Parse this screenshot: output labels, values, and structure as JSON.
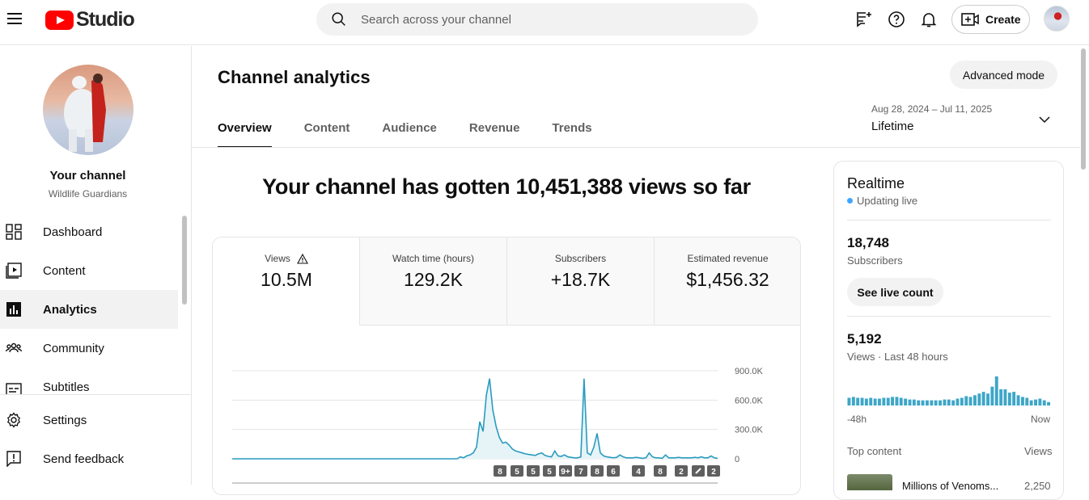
{
  "header": {
    "logo_text": "Studio",
    "search_placeholder": "Search across your channel",
    "create_label": "Create"
  },
  "sidebar": {
    "channel_title": "Your channel",
    "channel_name": "Wildlife Guardians",
    "items": [
      {
        "label": "Dashboard",
        "icon": "dashboard-icon"
      },
      {
        "label": "Content",
        "icon": "content-icon"
      },
      {
        "label": "Analytics",
        "icon": "analytics-icon",
        "active": true
      },
      {
        "label": "Community",
        "icon": "community-icon"
      },
      {
        "label": "Subtitles",
        "icon": "subtitles-icon"
      }
    ],
    "footer_items": [
      {
        "label": "Settings",
        "icon": "gear-icon"
      },
      {
        "label": "Send feedback",
        "icon": "feedback-icon"
      }
    ]
  },
  "main": {
    "title": "Channel analytics",
    "advanced_mode_label": "Advanced mode",
    "tabs": [
      {
        "label": "Overview",
        "active": true
      },
      {
        "label": "Content"
      },
      {
        "label": "Audience"
      },
      {
        "label": "Revenue"
      },
      {
        "label": "Trends"
      }
    ],
    "date_range": {
      "dates": "Aug 28, 2024 – Jul 11, 2025",
      "label": "Lifetime"
    },
    "headline": "Your channel has gotten 10,451,388 views so far",
    "metrics": [
      {
        "label": "Views",
        "value": "10.5M",
        "active": true,
        "warning": true
      },
      {
        "label": "Watch time (hours)",
        "value": "129.2K"
      },
      {
        "label": "Subscribers",
        "value": "+18.7K"
      },
      {
        "label": "Estimated revenue",
        "value": "$1,456.32"
      }
    ]
  },
  "chart_data": {
    "type": "area",
    "title": "",
    "xlabel": "",
    "ylabel": "",
    "yticks": [
      "900.0K",
      "600.0K",
      "300.0K",
      "0"
    ],
    "ylim": [
      0,
      900000
    ],
    "grid": true,
    "note": "x axis dates not visible; values approximate daily views",
    "values": [
      0,
      0,
      0,
      0,
      0,
      0,
      0,
      0,
      0,
      0,
      0,
      0,
      0,
      0,
      0,
      0,
      0,
      0,
      0,
      0,
      0,
      0,
      0,
      0,
      0,
      0,
      0,
      0,
      0,
      0,
      0,
      0,
      0,
      0,
      0,
      0,
      0,
      0,
      0,
      0,
      0,
      0,
      0,
      0,
      0,
      0,
      0,
      0,
      0,
      0,
      0,
      0,
      0,
      0,
      0,
      0,
      0,
      0,
      0,
      0,
      0,
      0,
      0,
      0,
      0,
      0,
      0,
      0,
      0,
      0,
      20000,
      10000,
      30000,
      40000,
      60000,
      120000,
      380000,
      280000,
      650000,
      820000,
      500000,
      330000,
      220000,
      160000,
      170000,
      140000,
      100000,
      80000,
      70000,
      60000,
      50000,
      45000,
      40000,
      35000,
      50000,
      60000,
      35000,
      25000,
      20000,
      80000,
      30000,
      25000,
      40000,
      20000,
      15000,
      10000,
      10000,
      20000,
      820000,
      60000,
      40000,
      120000,
      260000,
      60000,
      30000,
      20000,
      15000,
      10000,
      15000,
      40000,
      20000,
      10000,
      10000,
      10000,
      15000,
      10000,
      5000,
      10000,
      60000,
      20000,
      10000,
      10000,
      5000,
      40000,
      10000,
      10000,
      10000,
      15000,
      10000,
      10000,
      10000,
      10000,
      15000,
      10000,
      20000,
      10000,
      10000,
      30000,
      10000,
      5000
    ],
    "markers": [
      "8",
      "5",
      "5",
      "5",
      "9+",
      "7",
      "8",
      "6",
      "4",
      "8",
      "2",
      "",
      "2"
    ]
  },
  "realtime": {
    "title": "Realtime",
    "status": "Updating live",
    "subscribers_value": "18,748",
    "subscribers_label": "Subscribers",
    "live_count_label": "See live count",
    "views_value": "5,192",
    "views_label": "Views · Last 48 hours",
    "axis_start": "-48h",
    "axis_end": "Now",
    "top_content_label": "Top content",
    "top_content_col": "Views",
    "top_item_title": "Millions of Venoms...",
    "top_item_views": "2,250",
    "bars": [
      9,
      10,
      9,
      9,
      8,
      9,
      8,
      8,
      9,
      9,
      10,
      10,
      9,
      8,
      7,
      7,
      6,
      6,
      6,
      6,
      6,
      6,
      7,
      7,
      6,
      8,
      9,
      11,
      10,
      12,
      14,
      16,
      14,
      22,
      34,
      19,
      19,
      15,
      16,
      12,
      10,
      9,
      6,
      7,
      8,
      6,
      4
    ]
  }
}
